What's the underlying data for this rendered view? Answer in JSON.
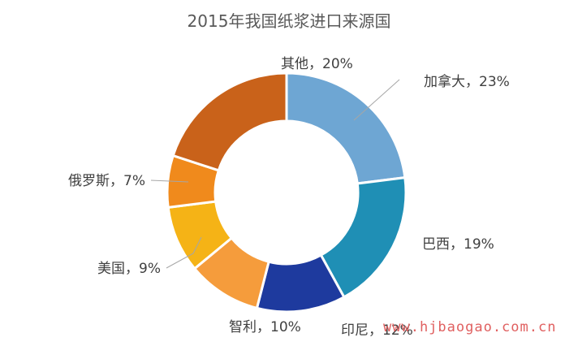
{
  "chart_data": {
    "type": "pie",
    "title": "2015年我国纸浆进口来源国",
    "donut": true,
    "slices": [
      {
        "name": "加拿大",
        "value": 23,
        "label": "加拿大，23%",
        "color": "#6ea6d3"
      },
      {
        "name": "巴西",
        "value": 19,
        "label": "巴西，19%",
        "color": "#1f8fb5"
      },
      {
        "name": "印尼",
        "value": 12,
        "label": "印尼，12%",
        "color": "#1e3a9e"
      },
      {
        "name": "智利",
        "value": 10,
        "label": "智利，10%",
        "color": "#f59c3c"
      },
      {
        "name": "美国",
        "value": 9,
        "label": "美国，9%",
        "color": "#f5b316"
      },
      {
        "name": "俄罗斯",
        "value": 7,
        "label": "俄罗斯，7%",
        "color": "#f08a1c"
      },
      {
        "name": "其他",
        "value": 20,
        "label": "其他，20%",
        "color": "#c9621a"
      }
    ]
  },
  "watermark": "www.hjbaogao.com.cn"
}
